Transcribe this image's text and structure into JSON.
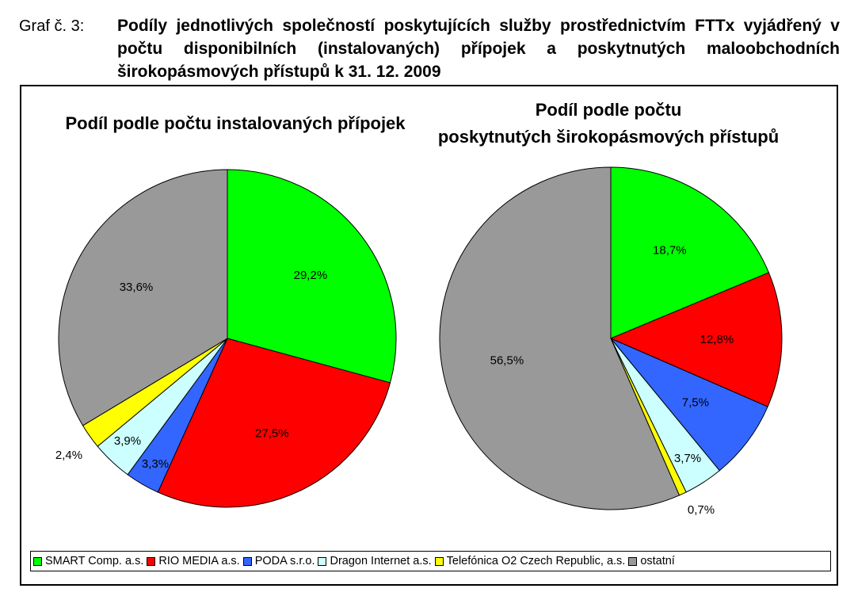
{
  "caption": {
    "number": "Graf č. 3:",
    "title": "Podíly jednotlivých společností poskytujících služby prostřednictvím FTTx vyjádřený v počtu disponibilních (instalovaných) přípojek a poskytnutých maloobchodních širokopásmových přístupů k 31. 12. 2009"
  },
  "colors": {
    "SMART Comp. a.s.": "#00ff00",
    "RIO MEDIA a.s.": "#ff0000",
    "PODA s.r.o.": "#3366ff",
    "Dragon Internet a.s.": "#ccffff",
    "Telefónica O2 Czech Republic, a.s.": "#ffff00",
    "ostatní": "#999999"
  },
  "legend": [
    "SMART Comp. a.s.",
    "RIO MEDIA a.s.",
    "PODA s.r.o.",
    "Dragon Internet a.s.",
    "Telefónica O2 Czech Republic, a.s.",
    "ostatní"
  ],
  "chart_data": [
    {
      "type": "pie",
      "title": "Podíl podle počtu instalovaných přípojek",
      "categories": [
        "SMART Comp. a.s.",
        "RIO MEDIA a.s.",
        "PODA s.r.o.",
        "Dragon Internet a.s.",
        "Telefónica O2 Czech Republic, a.s.",
        "ostatní"
      ],
      "values": [
        29.2,
        27.5,
        3.3,
        3.9,
        2.4,
        33.6
      ],
      "labels": [
        "29,2%",
        "27,5%",
        "3,3%",
        "3,9%",
        "2,4%",
        "33,6%"
      ],
      "legend_position": "bottom"
    },
    {
      "type": "pie",
      "title": "Podíl podle počtu poskytnutých širokopásmových přístupů",
      "categories": [
        "SMART Comp. a.s.",
        "RIO MEDIA a.s.",
        "PODA s.r.o.",
        "Dragon Internet a.s.",
        "Telefónica O2 Czech Republic, a.s.",
        "ostatní"
      ],
      "values": [
        18.7,
        12.8,
        7.5,
        3.7,
        0.7,
        56.5
      ],
      "labels": [
        "18,7%",
        "12,8%",
        "7,5%",
        "3,7%",
        "0,7%",
        "56,5%"
      ],
      "legend_position": "bottom"
    }
  ]
}
